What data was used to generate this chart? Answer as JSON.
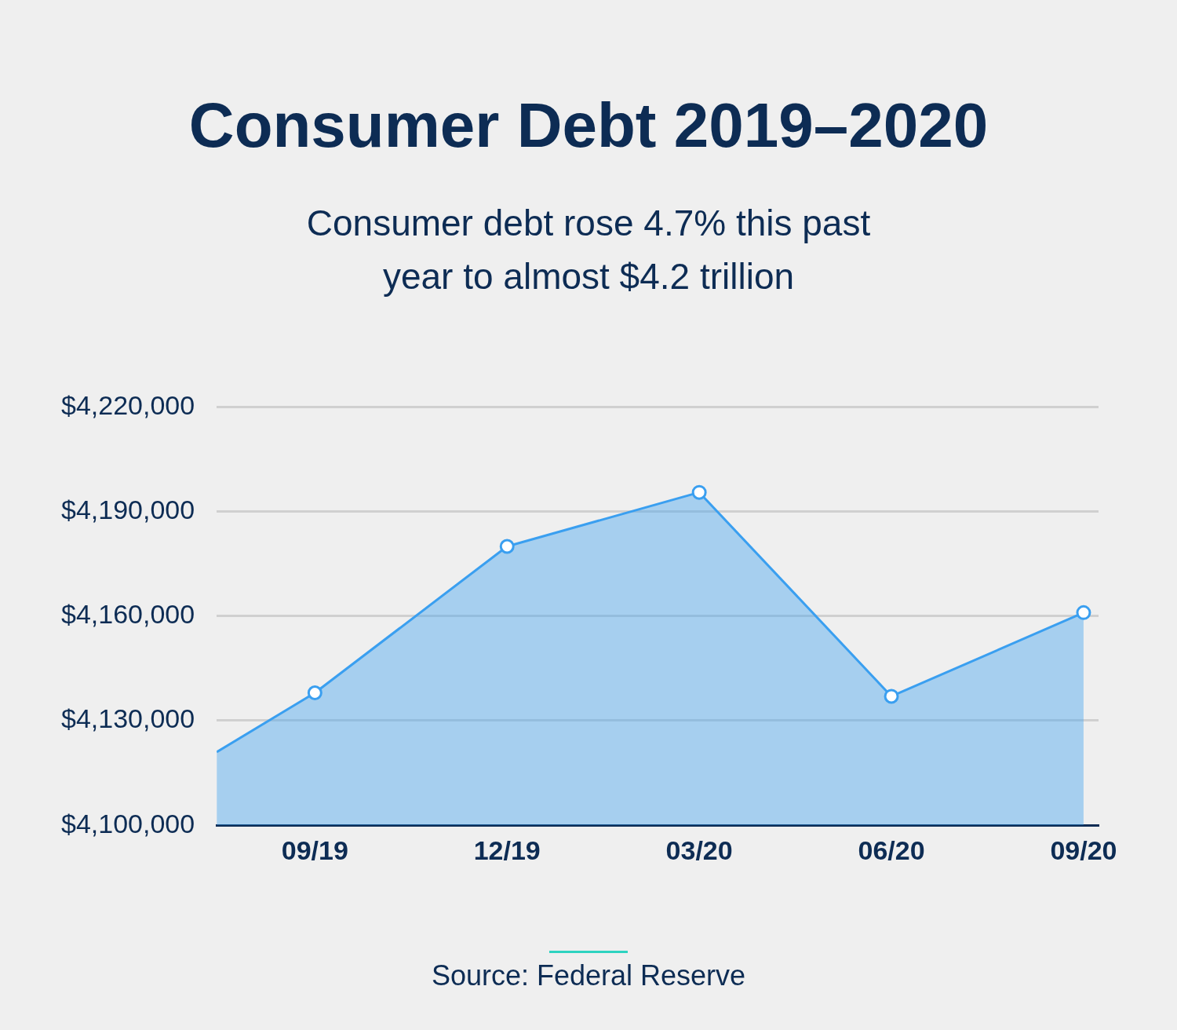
{
  "chart_data": {
    "type": "area",
    "title": "Consumer Debt 2019–2020",
    "subtitle": "Consumer debt rose 4.7% this past year to almost $4.2 trillion",
    "x": [
      "2019-07-15",
      "2019-09",
      "2019-12",
      "2020-03",
      "2020-06",
      "2020-09"
    ],
    "series": [
      {
        "color": "#3a9ff0",
        "values": [
          4121000,
          4138000,
          4180000,
          4195500,
          4137000,
          4161000
        ]
      }
    ],
    "xlim": [
      "2019-07-15",
      "2020-09-08"
    ],
    "xticks": [
      {
        "value": "2019-09",
        "label": "09/19"
      },
      {
        "value": "2019-12",
        "label": "12/19"
      },
      {
        "value": "2020-03",
        "label": "03/20"
      },
      {
        "value": "2020-06",
        "label": "06/20"
      },
      {
        "value": "2020-09",
        "label": "09/20"
      }
    ],
    "ylim": [
      4100000,
      4220000
    ],
    "yticks": [
      {
        "value": 4100000,
        "label": "$4,100,000"
      },
      {
        "value": 4130000,
        "label": "$4,130,000"
      },
      {
        "value": 4160000,
        "label": "$4,160,000"
      },
      {
        "value": 4190000,
        "label": "$4,190,000"
      },
      {
        "value": 4220000,
        "label": "$4,220,000"
      }
    ],
    "grid": "y",
    "legend": false,
    "marker": "circle",
    "line_style": "solid",
    "annotations": [
      "Source: Federal Reserve"
    ]
  }
}
